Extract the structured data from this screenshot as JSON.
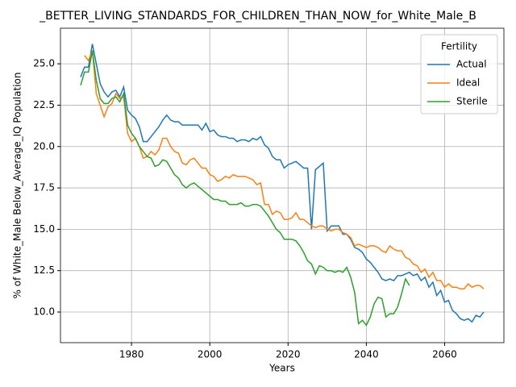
{
  "chart_data": {
    "type": "line",
    "title": "_BETTER_LIVING_STANDARDS_FOR_CHILDREN_THAN_NOW_for_White_Male_B",
    "xlabel": "Years",
    "ylabel": "% of White_Male Below_Average_IQ Population",
    "legend_title": "Fertility",
    "legend": "upper right",
    "grid": true,
    "x": [
      1967,
      1968,
      1969,
      1970,
      1971,
      1972,
      1973,
      1974,
      1975,
      1976,
      1977,
      1978,
      1979,
      1980,
      1981,
      1982,
      1983,
      1984,
      1985,
      1986,
      1987,
      1988,
      1989,
      1990,
      1991,
      1992,
      1993,
      1994,
      1995,
      1996,
      1997,
      1998,
      1999,
      2000,
      2001,
      2002,
      2003,
      2004,
      2005,
      2006,
      2007,
      2008,
      2009,
      2010,
      2011,
      2012,
      2013,
      2014,
      2015,
      2016,
      2017,
      2018,
      2019,
      2020,
      2021,
      2022,
      2023,
      2024,
      2025,
      2026,
      2027,
      2028,
      2029,
      2030,
      2031,
      2032,
      2033,
      2034,
      2035,
      2036,
      2037,
      2038,
      2039,
      2040,
      2041,
      2042,
      2043,
      2044,
      2045,
      2046,
      2047,
      2048,
      2049,
      2050,
      2051,
      2052,
      2053,
      2054,
      2055,
      2056,
      2057,
      2058,
      2059,
      2060,
      2061,
      2062,
      2063,
      2064,
      2065,
      2066,
      2067,
      2068,
      2069,
      2070
    ],
    "series": [
      {
        "name": "Actual",
        "color": "#1f77b4",
        "values": [
          24.2,
          24.8,
          24.8,
          26.2,
          25.0,
          23.8,
          23.3,
          23.0,
          23.3,
          23.4,
          23.0,
          23.6,
          22.2,
          21.9,
          21.7,
          21.2,
          20.3,
          20.3,
          20.6,
          20.9,
          21.2,
          21.6,
          21.9,
          21.6,
          21.5,
          21.5,
          21.3,
          21.3,
          21.3,
          21.3,
          21.3,
          21.0,
          21.4,
          20.9,
          21.0,
          20.7,
          20.6,
          20.6,
          20.5,
          20.5,
          20.3,
          20.4,
          20.4,
          20.3,
          20.5,
          20.4,
          20.6,
          20.1,
          19.9,
          19.4,
          19.2,
          19.2,
          18.7,
          18.9,
          19.0,
          19.1,
          18.9,
          18.7,
          18.7,
          15.0,
          18.6,
          18.8,
          19.0,
          14.9,
          15.2,
          15.2,
          15.2,
          14.7,
          14.7,
          14.4,
          13.9,
          13.8,
          13.6,
          13.2,
          13.0,
          12.7,
          12.4,
          12.0,
          11.9,
          12.0,
          11.9,
          12.2,
          12.2,
          12.3,
          12.4,
          12.2,
          12.3,
          11.9,
          12.1,
          11.5,
          11.8,
          11.0,
          11.3,
          10.6,
          10.7,
          10.1,
          9.9,
          9.6,
          9.5,
          9.6,
          9.4,
          9.8,
          9.7,
          10.0
        ]
      },
      {
        "name": "Ideal",
        "color": "#ff7f0e",
        "values": [
          null,
          25.5,
          25.2,
          25.8,
          23.2,
          22.5,
          21.8,
          22.4,
          22.6,
          23.2,
          22.9,
          23.0,
          20.8,
          20.3,
          20.5,
          20.0,
          19.3,
          19.4,
          19.7,
          19.5,
          19.8,
          20.5,
          20.5,
          20.0,
          19.7,
          19.6,
          19.0,
          18.9,
          19.2,
          19.3,
          19.0,
          18.7,
          18.7,
          18.3,
          18.2,
          17.9,
          18.0,
          18.2,
          18.1,
          18.3,
          18.2,
          18.2,
          18.2,
          18.1,
          18.0,
          17.7,
          17.8,
          16.5,
          16.5,
          15.9,
          16.1,
          16.0,
          15.6,
          15.6,
          15.7,
          16.0,
          15.6,
          15.6,
          15.4,
          15.2,
          15.1,
          15.2,
          15.2,
          15.0,
          14.9,
          15.0,
          15.0,
          14.8,
          14.7,
          14.5,
          14.0,
          14.1,
          14.0,
          13.9,
          14.0,
          14.0,
          13.9,
          13.7,
          13.6,
          14.0,
          13.8,
          13.7,
          13.7,
          13.3,
          13.2,
          12.9,
          12.8,
          12.4,
          12.6,
          12.1,
          12.4,
          11.9,
          11.9,
          11.5,
          11.7,
          11.5,
          11.5,
          11.4,
          11.4,
          11.7,
          11.5,
          11.6,
          11.6,
          11.4
        ]
      },
      {
        "name": "Sterile",
        "color": "#2ca02c",
        "values": [
          23.7,
          24.5,
          24.5,
          25.8,
          24.0,
          22.9,
          22.6,
          22.6,
          22.9,
          23.0,
          22.7,
          23.2,
          21.3,
          20.8,
          20.5,
          20.0,
          19.7,
          19.4,
          19.3,
          18.8,
          18.9,
          19.2,
          19.1,
          18.7,
          18.3,
          18.1,
          17.7,
          17.5,
          17.7,
          17.8,
          17.6,
          17.4,
          17.2,
          17.0,
          16.8,
          16.8,
          16.7,
          16.7,
          16.5,
          16.5,
          16.5,
          16.6,
          16.4,
          16.4,
          16.5,
          16.5,
          16.4,
          16.1,
          15.8,
          15.4,
          15.0,
          14.8,
          14.4,
          14.4,
          14.4,
          14.3,
          14.0,
          13.6,
          13.1,
          12.9,
          12.3,
          12.8,
          12.7,
          12.5,
          12.5,
          12.4,
          12.5,
          12.4,
          12.7,
          12.1,
          11.2,
          9.3,
          9.5,
          9.2,
          9.7,
          10.5,
          10.9,
          10.8,
          9.7,
          9.9,
          9.9,
          10.3,
          11.1,
          12.0,
          11.6,
          null,
          null,
          null,
          null,
          null,
          null,
          null,
          null,
          null,
          null,
          null,
          null,
          null,
          null,
          null,
          null,
          null,
          null,
          null
        ]
      }
    ],
    "xlim": [
      1961.85,
      2075.15
    ],
    "ylim": [
      8.15,
      27.15
    ],
    "xticks": [
      1980,
      2000,
      2020,
      2040,
      2060
    ],
    "yticks": [
      {
        "value": 10,
        "label": "10.0"
      },
      12.5,
      {
        "value": 15,
        "label": "15.0"
      },
      17.5,
      {
        "value": 20,
        "label": "20.0"
      },
      22.5,
      {
        "value": 25,
        "label": "25.0"
      }
    ]
  }
}
